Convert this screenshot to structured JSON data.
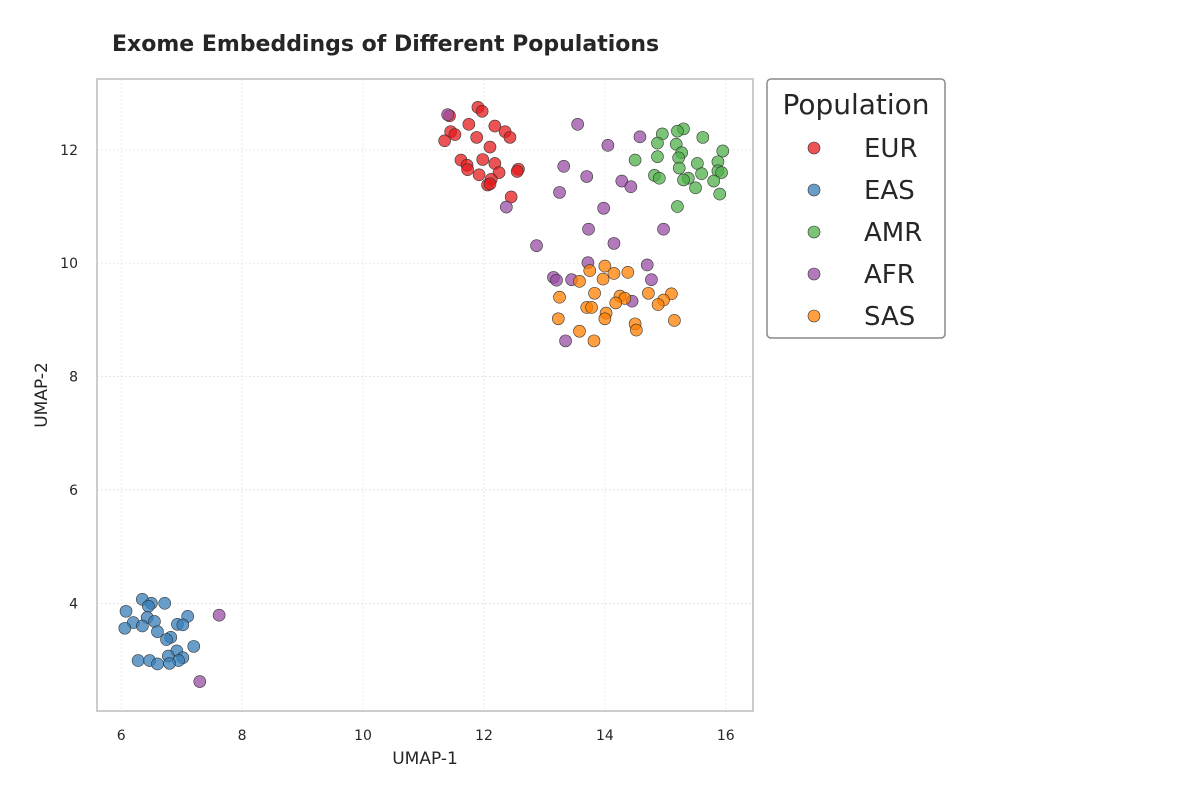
{
  "chart_data": {
    "type": "scatter",
    "title": "Exome Embeddings of Different Populations",
    "xlabel": "UMAP-1",
    "ylabel": "UMAP-2",
    "xlim": [
      5.6,
      16.45
    ],
    "ylim": [
      2.1,
      13.25
    ],
    "xticks": [
      6,
      8,
      10,
      12,
      14,
      16
    ],
    "yticks": [
      4,
      6,
      8,
      10,
      12
    ],
    "grid": true,
    "legend": {
      "title": "Population",
      "placement": "outside-right"
    },
    "series": [
      {
        "name": "EUR",
        "color": "#e41a1c",
        "points": [
          [
            11.9,
            12.75
          ],
          [
            11.97,
            12.68
          ],
          [
            11.43,
            12.6
          ],
          [
            11.75,
            12.45
          ],
          [
            12.18,
            12.42
          ],
          [
            11.45,
            12.32
          ],
          [
            11.52,
            12.27
          ],
          [
            12.35,
            12.32
          ],
          [
            12.43,
            12.22
          ],
          [
            11.35,
            12.16
          ],
          [
            11.88,
            12.22
          ],
          [
            12.1,
            12.05
          ],
          [
            11.62,
            11.82
          ],
          [
            11.98,
            11.83
          ],
          [
            11.72,
            11.73
          ],
          [
            12.18,
            11.76
          ],
          [
            11.73,
            11.65
          ],
          [
            12.25,
            11.6
          ],
          [
            12.57,
            11.66
          ],
          [
            12.55,
            11.62
          ],
          [
            11.92,
            11.56
          ],
          [
            12.12,
            11.48
          ],
          [
            12.06,
            11.38
          ],
          [
            12.1,
            11.4
          ],
          [
            12.45,
            11.17
          ]
        ]
      },
      {
        "name": "EAS",
        "color": "#377eb8",
        "points": [
          [
            6.35,
            4.07
          ],
          [
            6.72,
            4.0
          ],
          [
            6.5,
            4.0
          ],
          [
            6.45,
            3.95
          ],
          [
            6.08,
            3.86
          ],
          [
            7.1,
            3.77
          ],
          [
            6.43,
            3.75
          ],
          [
            6.55,
            3.68
          ],
          [
            6.2,
            3.66
          ],
          [
            6.35,
            3.6
          ],
          [
            6.93,
            3.63
          ],
          [
            7.02,
            3.62
          ],
          [
            6.06,
            3.56
          ],
          [
            6.6,
            3.5
          ],
          [
            6.82,
            3.4
          ],
          [
            6.75,
            3.36
          ],
          [
            7.2,
            3.24
          ],
          [
            6.92,
            3.16
          ],
          [
            6.78,
            3.07
          ],
          [
            7.02,
            3.04
          ],
          [
            6.95,
            2.99
          ],
          [
            6.28,
            2.99
          ],
          [
            6.47,
            2.99
          ],
          [
            6.6,
            2.93
          ],
          [
            6.8,
            2.94
          ]
        ]
      },
      {
        "name": "AMR",
        "color": "#4daf4a",
        "points": [
          [
            15.3,
            12.37
          ],
          [
            15.2,
            12.33
          ],
          [
            14.95,
            12.28
          ],
          [
            15.62,
            12.22
          ],
          [
            14.87,
            12.12
          ],
          [
            15.18,
            12.1
          ],
          [
            15.95,
            11.98
          ],
          [
            15.27,
            11.95
          ],
          [
            14.87,
            11.88
          ],
          [
            14.5,
            11.82
          ],
          [
            15.22,
            11.86
          ],
          [
            15.87,
            11.79
          ],
          [
            15.53,
            11.76
          ],
          [
            15.23,
            11.68
          ],
          [
            15.87,
            11.63
          ],
          [
            15.93,
            11.6
          ],
          [
            15.6,
            11.58
          ],
          [
            14.82,
            11.55
          ],
          [
            14.9,
            11.5
          ],
          [
            15.38,
            11.5
          ],
          [
            15.3,
            11.47
          ],
          [
            15.8,
            11.45
          ],
          [
            15.5,
            11.33
          ],
          [
            15.9,
            11.22
          ],
          [
            15.2,
            11.0
          ]
        ]
      },
      {
        "name": "AFR",
        "color": "#984ea3",
        "points": [
          [
            11.4,
            12.62
          ],
          [
            13.55,
            12.45
          ],
          [
            14.58,
            12.23
          ],
          [
            14.05,
            12.08
          ],
          [
            13.32,
            11.71
          ],
          [
            13.7,
            11.53
          ],
          [
            14.28,
            11.45
          ],
          [
            14.43,
            11.35
          ],
          [
            13.25,
            11.25
          ],
          [
            12.37,
            10.99
          ],
          [
            13.98,
            10.97
          ],
          [
            14.97,
            10.6
          ],
          [
            13.73,
            10.6
          ],
          [
            14.15,
            10.35
          ],
          [
            12.87,
            10.31
          ],
          [
            13.72,
            10.01
          ],
          [
            14.7,
            9.97
          ],
          [
            13.15,
            9.75
          ],
          [
            13.2,
            9.7
          ],
          [
            13.45,
            9.71
          ],
          [
            14.77,
            9.71
          ],
          [
            14.45,
            9.33
          ],
          [
            13.35,
            8.63
          ],
          [
            7.62,
            3.79
          ],
          [
            7.3,
            2.62
          ]
        ]
      },
      {
        "name": "SAS",
        "color": "#ff7f00",
        "points": [
          [
            14.0,
            9.95
          ],
          [
            13.75,
            9.87
          ],
          [
            14.38,
            9.84
          ],
          [
            14.15,
            9.82
          ],
          [
            13.97,
            9.72
          ],
          [
            13.58,
            9.68
          ],
          [
            14.72,
            9.47
          ],
          [
            13.83,
            9.47
          ],
          [
            15.1,
            9.46
          ],
          [
            14.25,
            9.42
          ],
          [
            14.33,
            9.38
          ],
          [
            13.25,
            9.4
          ],
          [
            14.97,
            9.35
          ],
          [
            14.88,
            9.27
          ],
          [
            14.18,
            9.3
          ],
          [
            13.7,
            9.22
          ],
          [
            13.78,
            9.22
          ],
          [
            14.02,
            9.12
          ],
          [
            14.0,
            9.02
          ],
          [
            13.23,
            9.02
          ],
          [
            15.15,
            8.99
          ],
          [
            14.5,
            8.93
          ],
          [
            14.52,
            8.82
          ],
          [
            13.58,
            8.8
          ],
          [
            13.82,
            8.63
          ]
        ]
      }
    ]
  }
}
